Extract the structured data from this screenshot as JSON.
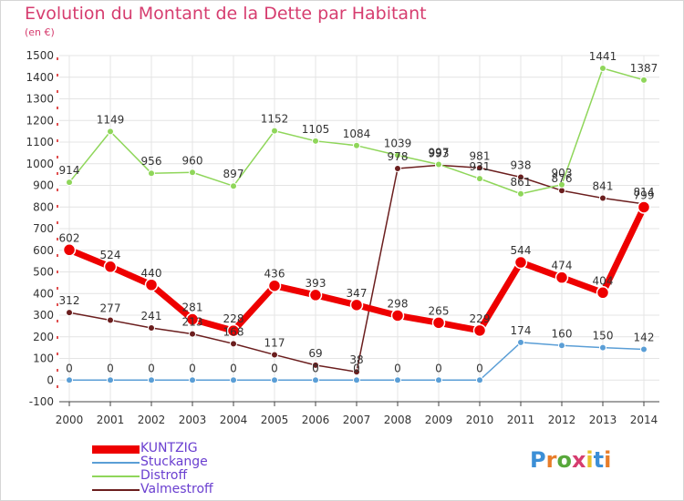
{
  "title": "Evolution du Montant de la Dette par Habitant",
  "subtitle": "(en €)",
  "logo": {
    "text": "Proxiti",
    "letter_colors": [
      "#3c8fd6",
      "#e87d2a",
      "#58a83b",
      "#d63d6f",
      "#e8c02a",
      "#3c8fd6",
      "#e87d2a"
    ]
  },
  "chart_data": {
    "type": "line",
    "x": [
      "2000",
      "2001",
      "2002",
      "2003",
      "2004",
      "2005",
      "2006",
      "2007",
      "2008",
      "2009",
      "2010",
      "2011",
      "2012",
      "2013",
      "2014"
    ],
    "ylim": [
      -100,
      1500
    ],
    "yticks": [
      "-100",
      "0",
      "100",
      "200",
      "300",
      "400",
      "500",
      "600",
      "700",
      "800",
      "900",
      "1000",
      "1100",
      "1200",
      "1300",
      "1400",
      "1500"
    ],
    "grid": true,
    "legend_position": "bottom-left",
    "series": [
      {
        "name": "Valmestroff",
        "color": "#6b1e1e",
        "values": [
          312,
          277,
          241,
          213,
          168,
          117,
          69,
          38,
          978,
          993,
          981,
          938,
          876,
          841,
          814
        ],
        "labels": [
          "312",
          "277",
          "241",
          "213",
          "168",
          "117",
          "69",
          "38",
          "978",
          "993",
          "981",
          "938",
          "876",
          "841",
          "814"
        ]
      },
      {
        "name": "Distroff",
        "color": "#8fd65a",
        "values": [
          914,
          1149,
          956,
          960,
          897,
          1152,
          1105,
          1084,
          1039,
          997,
          931,
          861,
          903,
          1441,
          1387
        ],
        "labels": [
          "914",
          "1149",
          "956",
          "960",
          "897",
          "1152",
          "1105",
          "1084",
          "1039",
          "997",
          "931",
          "861",
          "903",
          "1441",
          "1387"
        ]
      },
      {
        "name": "Stuckange",
        "color": "#5a9ed6",
        "values": [
          0,
          0,
          0,
          0,
          0,
          0,
          0,
          0,
          0,
          0,
          0,
          174,
          160,
          150,
          142
        ],
        "labels": [
          "0",
          "0",
          "0",
          "0",
          "0",
          "0",
          "0",
          "0",
          "0",
          "0",
          "0",
          "174",
          "160",
          "150",
          "142"
        ]
      },
      {
        "name": "KUNTZIG",
        "color": "#ee0000",
        "values": [
          602,
          524,
          440,
          281,
          228,
          436,
          393,
          347,
          298,
          265,
          229,
          544,
          474,
          404,
          799
        ],
        "labels": [
          "602",
          "524",
          "440",
          "281",
          "228",
          "436",
          "393",
          "347",
          "298",
          "265",
          "229",
          "544",
          "474",
          "404",
          "799"
        ]
      }
    ],
    "legend_order": [
      "KUNTZIG",
      "Stuckange",
      "Distroff",
      "Valmestroff"
    ]
  }
}
